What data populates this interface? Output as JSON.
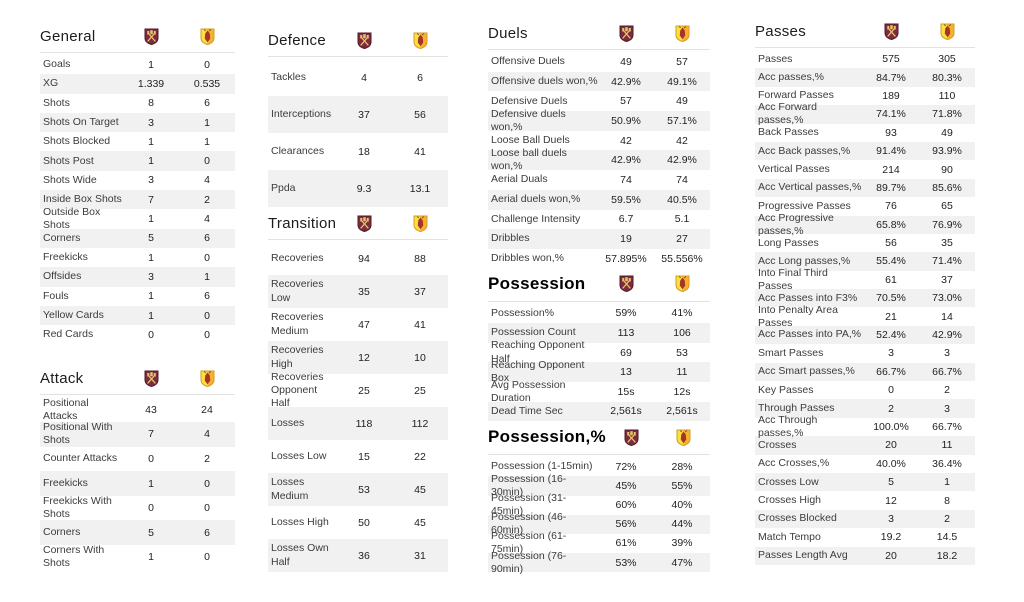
{
  "chart_data": {
    "type": "table",
    "teams": [
      {
        "id": "home",
        "icon": "west-ham-crest",
        "color": "#7d2b3f"
      },
      {
        "id": "away",
        "icon": "watford-crest",
        "color": "#fbe23a"
      }
    ],
    "layout": {
      "columns": [
        [
          "general",
          "attack"
        ],
        [
          "defence",
          "transition"
        ],
        [
          "duels",
          "possession",
          "possession_pct"
        ],
        [
          "passes"
        ]
      ],
      "row_alt_color": "#f1f1f1",
      "grid": false
    },
    "sections": {
      "general": {
        "title": "General",
        "rows": [
          {
            "label": "Goals",
            "home": "1",
            "away": "0"
          },
          {
            "label": "XG",
            "home": "1.339",
            "away": "0.535"
          },
          {
            "label": "Shots",
            "home": "8",
            "away": "6"
          },
          {
            "label": "Shots On Target",
            "home": "3",
            "away": "1"
          },
          {
            "label": "Shots Blocked",
            "home": "1",
            "away": "1"
          },
          {
            "label": "Shots Post",
            "home": "1",
            "away": "0"
          },
          {
            "label": "Shots Wide",
            "home": "3",
            "away": "4"
          },
          {
            "label": "Inside Box Shots",
            "home": "7",
            "away": "2"
          },
          {
            "label": "Outside Box Shots",
            "home": "1",
            "away": "4"
          },
          {
            "label": "Corners",
            "home": "5",
            "away": "6"
          },
          {
            "label": "Freekicks",
            "home": "1",
            "away": "0"
          },
          {
            "label": "Offsides",
            "home": "3",
            "away": "1"
          },
          {
            "label": "Fouls",
            "home": "1",
            "away": "6"
          },
          {
            "label": "Yellow Cards",
            "home": "1",
            "away": "0"
          },
          {
            "label": "Red Cards",
            "home": "0",
            "away": "0"
          }
        ]
      },
      "attack": {
        "title": "Attack",
        "rows": [
          {
            "label": "Positional Attacks",
            "home": "43",
            "away": "24"
          },
          {
            "label": "Positional With Shots",
            "home": "7",
            "away": "4"
          },
          {
            "label": "Counter Attacks",
            "home": "0",
            "away": "2"
          },
          {
            "label": "Freekicks",
            "home": "1",
            "away": "0"
          },
          {
            "label": "Freekicks With Shots",
            "home": "0",
            "away": "0"
          },
          {
            "label": "Corners",
            "home": "5",
            "away": "6"
          },
          {
            "label": "Corners With Shots",
            "home": "1",
            "away": "0"
          }
        ]
      },
      "defence": {
        "title": "Defence",
        "rows": [
          {
            "label": "Tackles",
            "home": "4",
            "away": "6"
          },
          {
            "label": "Interceptions",
            "home": "37",
            "away": "56"
          },
          {
            "label": "Clearances",
            "home": "18",
            "away": "41"
          },
          {
            "label": "Ppda",
            "home": "9.3",
            "away": "13.1"
          }
        ]
      },
      "transition": {
        "title": "Transition",
        "rows": [
          {
            "label": "Recoveries",
            "home": "94",
            "away": "88"
          },
          {
            "label": "Recoveries Low",
            "home": "35",
            "away": "37"
          },
          {
            "label": "Recoveries Medium",
            "home": "47",
            "away": "41"
          },
          {
            "label": "Recoveries High",
            "home": "12",
            "away": "10"
          },
          {
            "label": "Recoveries Opponent Half",
            "home": "25",
            "away": "25"
          },
          {
            "label": "Losses",
            "home": "118",
            "away": "112"
          },
          {
            "label": "Losses Low",
            "home": "15",
            "away": "22"
          },
          {
            "label": "Losses Medium",
            "home": "53",
            "away": "45"
          },
          {
            "label": "Losses High",
            "home": "50",
            "away": "45"
          },
          {
            "label": "Losses Own Half",
            "home": "36",
            "away": "31"
          }
        ]
      },
      "duels": {
        "title": "Duels",
        "rows": [
          {
            "label": "Offensive Duels",
            "home": "49",
            "away": "57"
          },
          {
            "label": "Offensive duels won,%",
            "home": "42.9%",
            "away": "49.1%"
          },
          {
            "label": "Defensive Duels",
            "home": "57",
            "away": "49"
          },
          {
            "label": "Defensive duels won,%",
            "home": "50.9%",
            "away": "57.1%"
          },
          {
            "label": "Loose Ball Duels",
            "home": "42",
            "away": "42"
          },
          {
            "label": "Loose ball duels won,%",
            "home": "42.9%",
            "away": "42.9%"
          },
          {
            "label": "Aerial Duals",
            "home": "74",
            "away": "74"
          },
          {
            "label": "Aerial duels won,%",
            "home": "59.5%",
            "away": "40.5%"
          },
          {
            "label": "Challenge Intensity",
            "home": "6.7",
            "away": "5.1"
          },
          {
            "label": "Dribbles",
            "home": "19",
            "away": "27"
          },
          {
            "label": "Dribbles won,%",
            "home": "57.895%",
            "away": "55.556%"
          }
        ]
      },
      "possession": {
        "title": "Possession",
        "rows": [
          {
            "label": "Possession%",
            "home": "59%",
            "away": "41%"
          },
          {
            "label": "Possession Count",
            "home": "113",
            "away": "106"
          },
          {
            "label": "Reaching Opponent Half",
            "home": "69",
            "away": "53"
          },
          {
            "label": "Reaching Opponent Box",
            "home": "13",
            "away": "11"
          },
          {
            "label": "Avg Possession Duration",
            "home": "15s",
            "away": "12s"
          },
          {
            "label": "Dead Time Sec",
            "home": "2,561s",
            "away": "2,561s"
          }
        ]
      },
      "possession_pct": {
        "title": "Possession,%",
        "rows": [
          {
            "label": "Possession (1-15min)",
            "home": "72%",
            "away": "28%"
          },
          {
            "label": "Possession (16-30min)",
            "home": "45%",
            "away": "55%"
          },
          {
            "label": "Possession (31-45min)",
            "home": "60%",
            "away": "40%"
          },
          {
            "label": "Possession (46-60min)",
            "home": "56%",
            "away": "44%"
          },
          {
            "label": "Possession (61-75min)",
            "home": "61%",
            "away": "39%"
          },
          {
            "label": "Possession (76-90min)",
            "home": "53%",
            "away": "47%"
          }
        ]
      },
      "passes": {
        "title": "Passes",
        "rows": [
          {
            "label": "Passes",
            "home": "575",
            "away": "305"
          },
          {
            "label": "Acc passes,%",
            "home": "84.7%",
            "away": "80.3%"
          },
          {
            "label": "Forward Passes",
            "home": "189",
            "away": "110"
          },
          {
            "label": "Acc Forward passes,%",
            "home": "74.1%",
            "away": "71.8%"
          },
          {
            "label": "Back Passes",
            "home": "93",
            "away": "49"
          },
          {
            "label": "Acc Back passes,%",
            "home": "91.4%",
            "away": "93.9%"
          },
          {
            "label": "Vertical Passes",
            "home": "214",
            "away": "90"
          },
          {
            "label": "Acc Vertical passes,%",
            "home": "89.7%",
            "away": "85.6%"
          },
          {
            "label": "Progressive Passes",
            "home": "76",
            "away": "65"
          },
          {
            "label": "Acc Progressive passes,%",
            "home": "65.8%",
            "away": "76.9%"
          },
          {
            "label": "Long Passes",
            "home": "56",
            "away": "35"
          },
          {
            "label": "Acc Long passes,%",
            "home": "55.4%",
            "away": "71.4%"
          },
          {
            "label": "Into Final Third Passes",
            "home": "61",
            "away": "37"
          },
          {
            "label": "Acc Passes into F3%",
            "home": "70.5%",
            "away": "73.0%"
          },
          {
            "label": "Into Penalty Area Passes",
            "home": "21",
            "away": "14"
          },
          {
            "label": "Acc Passes into PA,%",
            "home": "52.4%",
            "away": "42.9%"
          },
          {
            "label": "Smart Passes",
            "home": "3",
            "away": "3"
          },
          {
            "label": "Acc Smart passes,%",
            "home": "66.7%",
            "away": "66.7%"
          },
          {
            "label": "Key Passes",
            "home": "0",
            "away": "2"
          },
          {
            "label": "Through Passes",
            "home": "2",
            "away": "3"
          },
          {
            "label": "Acc Through passes,%",
            "home": "100.0%",
            "away": "66.7%"
          },
          {
            "label": "Crosses",
            "home": "20",
            "away": "11"
          },
          {
            "label": "Acc Crosses,%",
            "home": "40.0%",
            "away": "36.4%"
          },
          {
            "label": "Crosses Low",
            "home": "5",
            "away": "1"
          },
          {
            "label": "Crosses High",
            "home": "12",
            "away": "8"
          },
          {
            "label": "Crosses Blocked",
            "home": "3",
            "away": "2"
          },
          {
            "label": "Match Tempo",
            "home": "19.2",
            "away": "14.5"
          },
          {
            "label": "Passes Length Avg",
            "home": "20",
            "away": "18.2"
          }
        ]
      }
    }
  }
}
